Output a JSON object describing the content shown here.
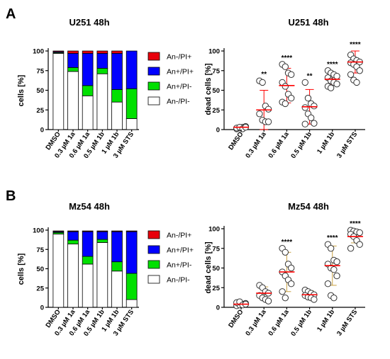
{
  "panels": [
    {
      "letter": "A"
    },
    {
      "letter": "B"
    }
  ],
  "legend": {
    "entries": [
      {
        "label": "An-/PI+",
        "color": "#e8000b"
      },
      {
        "label": "An+/PI+",
        "color": "#0000ff"
      },
      {
        "label": "An+/PI-",
        "color": "#00e000"
      },
      {
        "label": "An-/PI-",
        "color": "#ffffff"
      }
    ]
  },
  "chart_data": [
    {
      "type": "bar",
      "stacked": true,
      "title": "U251 48h",
      "ylabel": "cells [%]",
      "ylim": [
        0,
        100
      ],
      "yticks": [
        0,
        25,
        50,
        75,
        100
      ],
      "categories": [
        "DMSO",
        "0.3 µM 1a",
        "0.6 µM 1a",
        "0.5 µM 1b",
        "1 µM 1b",
        "3 µM STS"
      ],
      "series": [
        {
          "name": "An-/PI-",
          "color": "#ffffff",
          "values": [
            97,
            74,
            43,
            71,
            35,
            14
          ]
        },
        {
          "name": "An+/PI-",
          "color": "#00e000",
          "values": [
            1,
            5,
            13,
            7,
            16,
            38
          ]
        },
        {
          "name": "An+/PI+",
          "color": "#0000ff",
          "values": [
            1,
            18,
            41,
            19,
            46,
            48
          ]
        },
        {
          "name": "An-/PI+",
          "color": "#e8000b",
          "values": [
            1,
            3,
            3,
            3,
            3,
            0
          ]
        }
      ]
    },
    {
      "type": "scatter",
      "title": "U251 48h",
      "ylabel": "dead cells [%]",
      "ylim": [
        0,
        100
      ],
      "yticks": [
        0,
        25,
        50,
        75,
        100
      ],
      "categories": [
        "DMSO",
        "0.3 µM 1a",
        "0.6 µM 1a",
        "0.5 µM 1b",
        "1 µM 1b",
        "3 µM STS"
      ],
      "mean": [
        3,
        25,
        56,
        29,
        64,
        86
      ],
      "sd": [
        1,
        25,
        22,
        22,
        7,
        14
      ],
      "significance": [
        "",
        "**",
        "****",
        "**",
        "****",
        "****"
      ],
      "points": [
        [
          1,
          2,
          3,
          4,
          2,
          3,
          1,
          3
        ],
        [
          62,
          60,
          30,
          26,
          20,
          12,
          10,
          10
        ],
        [
          83,
          80,
          72,
          70,
          60,
          55,
          45,
          40,
          35,
          33
        ],
        [
          60,
          40,
          33,
          30,
          28,
          20,
          15,
          8,
          7
        ],
        [
          75,
          72,
          70,
          68,
          66,
          62,
          60,
          58,
          55,
          53
        ],
        [
          95,
          90,
          88,
          86,
          85,
          83,
          80,
          75,
          70,
          63,
          60
        ]
      ],
      "mean_color": "#ff0000",
      "sd_color": "#ff0000"
    },
    {
      "type": "bar",
      "stacked": true,
      "title": "Mz54 48h",
      "ylabel": "cells [%]",
      "ylim": [
        0,
        100
      ],
      "yticks": [
        0,
        25,
        50,
        75,
        100
      ],
      "categories": [
        "DMSO",
        "0.3 µM 1a",
        "0.6 µM 1a",
        "0.5 µM 1b",
        "1 µM 1b",
        "3 µM STS"
      ],
      "series": [
        {
          "name": "An-/PI-",
          "color": "#ffffff",
          "values": [
            95,
            82,
            56,
            84,
            47,
            10
          ]
        },
        {
          "name": "An+/PI-",
          "color": "#00e000",
          "values": [
            2,
            5,
            10,
            4,
            12,
            34
          ]
        },
        {
          "name": "An+/PI+",
          "color": "#0000ff",
          "values": [
            1,
            11,
            32,
            10,
            39,
            54
          ]
        },
        {
          "name": "An-/PI+",
          "color": "#a52a1a",
          "values": [
            1,
            1,
            1,
            1,
            1,
            1
          ]
        }
      ]
    },
    {
      "type": "scatter",
      "title": "Mz54 48h",
      "ylabel": "dead cells [%]",
      "ylim": [
        0,
        100
      ],
      "yticks": [
        0,
        25,
        50,
        75,
        100
      ],
      "categories": [
        "DMSO",
        "0.3 µM 1a",
        "0.6 µM 1a",
        "0.5 µM 1b",
        "1 µM 1b",
        "3 µM STS"
      ],
      "mean": [
        4,
        18,
        45,
        16,
        53,
        90
      ],
      "sd": [
        2,
        8,
        25,
        5,
        25,
        8
      ],
      "significance": [
        "",
        "",
        "****",
        "",
        "****",
        "****"
      ],
      "points": [
        [
          2,
          3,
          4,
          5,
          6,
          7,
          3,
          4
        ],
        [
          28,
          25,
          20,
          18,
          15,
          12,
          10,
          8
        ],
        [
          75,
          70,
          55,
          50,
          45,
          40,
          35,
          30,
          20,
          12
        ],
        [
          22,
          20,
          18,
          16,
          15,
          13,
          12,
          10
        ],
        [
          80,
          75,
          60,
          58,
          55,
          50,
          48,
          40,
          30,
          15,
          12
        ],
        [
          98,
          97,
          96,
          95,
          93,
          90,
          85,
          80,
          75
        ]
      ],
      "mean_color": "#ff0000",
      "sd_color": "#c8a040"
    }
  ]
}
